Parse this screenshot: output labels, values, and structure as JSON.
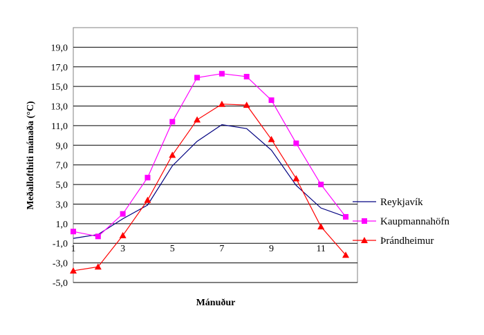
{
  "chart_data": {
    "type": "line",
    "title": "",
    "xlabel": "Mánuður",
    "ylabel": "Meðallofthiti mánaða (°C)",
    "xlim": [
      1,
      12
    ],
    "ylim": [
      -5,
      21
    ],
    "y_ticks": [
      -5,
      -3,
      -1,
      1,
      3,
      5,
      7,
      9,
      11,
      13,
      15,
      17,
      19
    ],
    "y_tick_labels": [
      "-5,0",
      "-3,0",
      "-1,0",
      "1,0",
      "3,0",
      "5,0",
      "7,0",
      "9,0",
      "11,0",
      "13,0",
      "15,0",
      "17,0",
      "19,0"
    ],
    "x_ticks": [
      1,
      3,
      5,
      7,
      9,
      11
    ],
    "x_tick_labels": [
      "1",
      "3",
      "5",
      "7",
      "9",
      "11"
    ],
    "grid": "horizontal",
    "legend_position": "right",
    "x": [
      1,
      2,
      3,
      4,
      5,
      6,
      7,
      8,
      9,
      10,
      11,
      12
    ],
    "series": [
      {
        "name": "Reykjavík",
        "color": "#000080",
        "marker": "none",
        "values": [
          -0.5,
          -0.1,
          1.5,
          2.9,
          6.9,
          9.4,
          11.1,
          10.7,
          8.5,
          4.9,
          2.6,
          1.7
        ]
      },
      {
        "name": "Kaupmannahöfn",
        "color": "#ff00ff",
        "marker": "square",
        "values": [
          0.2,
          -0.3,
          2.0,
          5.7,
          11.4,
          15.9,
          16.3,
          16.0,
          13.6,
          9.2,
          5.0,
          1.7
        ]
      },
      {
        "name": "Þrándheimur",
        "color": "#ff0000",
        "marker": "triangle",
        "values": [
          -3.8,
          -3.4,
          -0.2,
          3.4,
          8.0,
          11.6,
          13.2,
          13.1,
          9.6,
          5.6,
          0.7,
          -2.2
        ]
      }
    ]
  }
}
